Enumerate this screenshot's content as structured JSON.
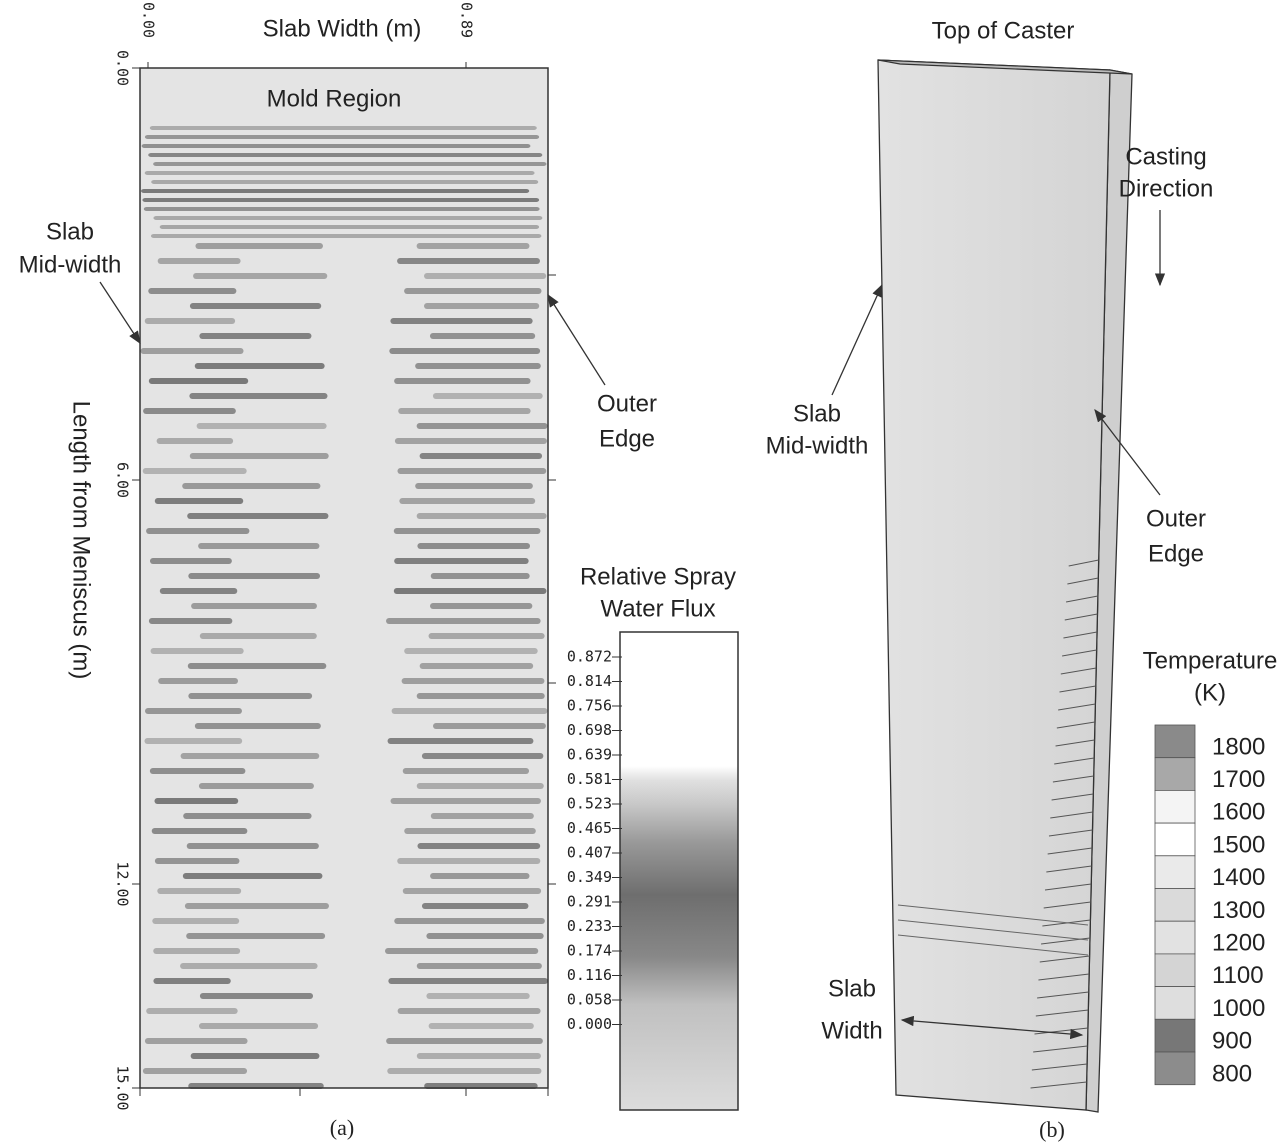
{
  "panel_a": {
    "x_axis_label": "Slab Width (m)",
    "x_ticks": [
      "0.00",
      "0.89"
    ],
    "y_axis_label": "Length from Meniscus (m)",
    "y_ticks": [
      "0.00",
      "6.00",
      "12.00",
      "15.00"
    ],
    "region_label": "Mold Region",
    "mid_width_label": [
      "Slab",
      "Mid-width"
    ],
    "outer_edge_label": [
      "Outer",
      "Edge"
    ],
    "legend": {
      "title": [
        "Relative Spray",
        "Water Flux"
      ],
      "labels": [
        "0.872",
        "0.814",
        "0.756",
        "0.698",
        "0.639",
        "0.581",
        "0.523",
        "0.465",
        "0.407",
        "0.349",
        "0.291",
        "0.233",
        "0.174",
        "0.116",
        "0.058",
        "0.000"
      ]
    },
    "caption": "(a)"
  },
  "panel_b": {
    "top_label": "Top of Caster",
    "direction_label": [
      "Casting",
      "Direction"
    ],
    "mid_width_label": [
      "Slab",
      "Mid-width"
    ],
    "outer_edge_label": [
      "Outer",
      "Edge"
    ],
    "width_label": [
      "Slab",
      "Width"
    ],
    "legend": {
      "title": [
        "Temperature",
        "(K)"
      ],
      "labels": [
        "1800",
        "1700",
        "1600",
        "1500",
        "1400",
        "1300",
        "1200",
        "1100",
        "1000",
        "900",
        "800"
      ]
    },
    "caption": "(b)"
  }
}
